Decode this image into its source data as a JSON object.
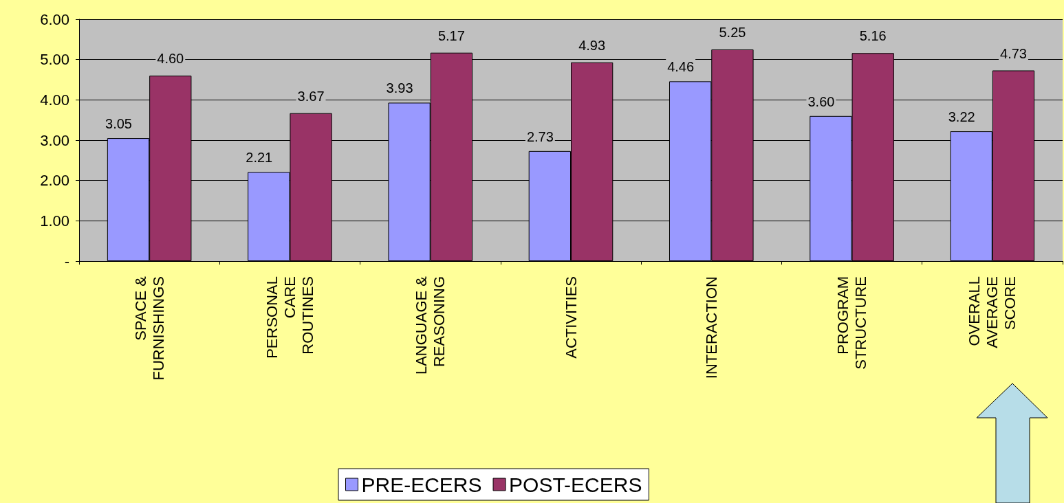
{
  "chart_data": {
    "type": "bar",
    "categories": [
      "SPACE &\nFURNISHINGS",
      "PERSONAL\nCARE\nROUTINES",
      "LANGUAGE &\nREASONING",
      "ACTIVITIES",
      "INTERACTION",
      "PROGRAM\nSTRUCTURE",
      "OVERALL\nAVERAGE\nSCORE"
    ],
    "series": [
      {
        "name": "PRE-ECERS",
        "color": "#9999ff",
        "values": [
          3.05,
          2.21,
          3.93,
          2.73,
          4.46,
          3.6,
          3.22
        ]
      },
      {
        "name": "POST-ECERS",
        "color": "#993366",
        "values": [
          4.6,
          3.67,
          5.17,
          4.93,
          5.25,
          5.16,
          4.73
        ]
      }
    ],
    "value_labels": [
      [
        "3.05",
        "2.21",
        "3.93",
        "2.73",
        "4.46",
        "3.60",
        "3.22"
      ],
      [
        "4.60",
        "3.67",
        "5.17",
        "4.93",
        "5.25",
        "5.16",
        "4.73"
      ]
    ],
    "ylim": [
      0,
      6
    ],
    "yticks": [
      {
        "value": 0,
        "label": "-"
      },
      {
        "value": 1,
        "label": "1.00"
      },
      {
        "value": 2,
        "label": "2.00"
      },
      {
        "value": 3,
        "label": "3.00"
      },
      {
        "value": 4,
        "label": "4.00"
      },
      {
        "value": 5,
        "label": "5.00"
      },
      {
        "value": 6,
        "label": "6.00"
      }
    ],
    "grid": "y",
    "legend": "bottom"
  }
}
